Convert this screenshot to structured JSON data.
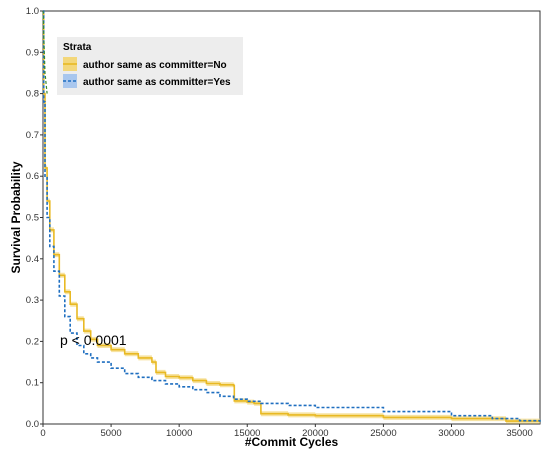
{
  "chart_data": {
    "type": "line",
    "title": "",
    "xlabel": "#Commit Cycles",
    "ylabel": "Survival Probability",
    "xlim": [
      0,
      36500
    ],
    "ylim": [
      0,
      1.0
    ],
    "xticks": [
      0,
      5000,
      10000,
      15000,
      20000,
      25000,
      30000,
      35000
    ],
    "yticks": [
      0.0,
      0.1,
      0.2,
      0.3,
      0.4,
      0.5,
      0.6,
      0.7,
      0.8,
      0.9,
      1.0
    ],
    "grid": false,
    "legend_position": "top-left",
    "legend_title": "Strata",
    "annotation": "p < 0.0001",
    "series": [
      {
        "name": "author same as committer=No",
        "color": "#E8B923",
        "band_color": "#F3D77A",
        "line_style": "solid",
        "points": [
          [
            0,
            1.0
          ],
          [
            50,
            0.8
          ],
          [
            150,
            0.62
          ],
          [
            300,
            0.54
          ],
          [
            500,
            0.47
          ],
          [
            800,
            0.41
          ],
          [
            1200,
            0.36
          ],
          [
            1600,
            0.32
          ],
          [
            2000,
            0.29
          ],
          [
            2500,
            0.255
          ],
          [
            3000,
            0.225
          ],
          [
            3500,
            0.205
          ],
          [
            4000,
            0.19
          ],
          [
            5000,
            0.18
          ],
          [
            6000,
            0.17
          ],
          [
            7000,
            0.16
          ],
          [
            8000,
            0.15
          ],
          [
            8300,
            0.125
          ],
          [
            9000,
            0.115
          ],
          [
            10000,
            0.112
          ],
          [
            11000,
            0.105
          ],
          [
            12000,
            0.098
          ],
          [
            13000,
            0.095
          ],
          [
            14000,
            0.093
          ],
          [
            14050,
            0.056
          ],
          [
            15000,
            0.053
          ],
          [
            15500,
            0.05
          ],
          [
            16000,
            0.025
          ],
          [
            18000,
            0.022
          ],
          [
            20000,
            0.02
          ],
          [
            25000,
            0.016
          ],
          [
            30000,
            0.013
          ],
          [
            34000,
            0.007
          ],
          [
            36500,
            0.005
          ]
        ]
      },
      {
        "name": "author same as committer=Yes",
        "color": "#1F6FC0",
        "line_style": "dashed",
        "points": [
          [
            0,
            1.0
          ],
          [
            50,
            0.78
          ],
          [
            150,
            0.6
          ],
          [
            300,
            0.5
          ],
          [
            500,
            0.43
          ],
          [
            800,
            0.37
          ],
          [
            1200,
            0.31
          ],
          [
            1600,
            0.26
          ],
          [
            2000,
            0.22
          ],
          [
            2500,
            0.19
          ],
          [
            3000,
            0.17
          ],
          [
            3500,
            0.16
          ],
          [
            4000,
            0.15
          ],
          [
            5000,
            0.135
          ],
          [
            6000,
            0.122
          ],
          [
            7000,
            0.113
          ],
          [
            8000,
            0.105
          ],
          [
            9000,
            0.097
          ],
          [
            10000,
            0.09
          ],
          [
            11000,
            0.083
          ],
          [
            12000,
            0.076
          ],
          [
            13000,
            0.067
          ],
          [
            14000,
            0.06
          ],
          [
            15000,
            0.055
          ],
          [
            16000,
            0.05
          ],
          [
            18000,
            0.045
          ],
          [
            20000,
            0.04
          ],
          [
            25000,
            0.03
          ],
          [
            30000,
            0.02
          ],
          [
            33000,
            0.013
          ],
          [
            35000,
            0.008
          ],
          [
            36500,
            0.005
          ]
        ]
      }
    ],
    "reference_line": {
      "color": "#3A8A2E",
      "line_style": "dashed",
      "points": [
        [
          0,
          1.0
        ],
        [
          150,
          0.85
        ],
        [
          300,
          0.8
        ]
      ]
    }
  }
}
